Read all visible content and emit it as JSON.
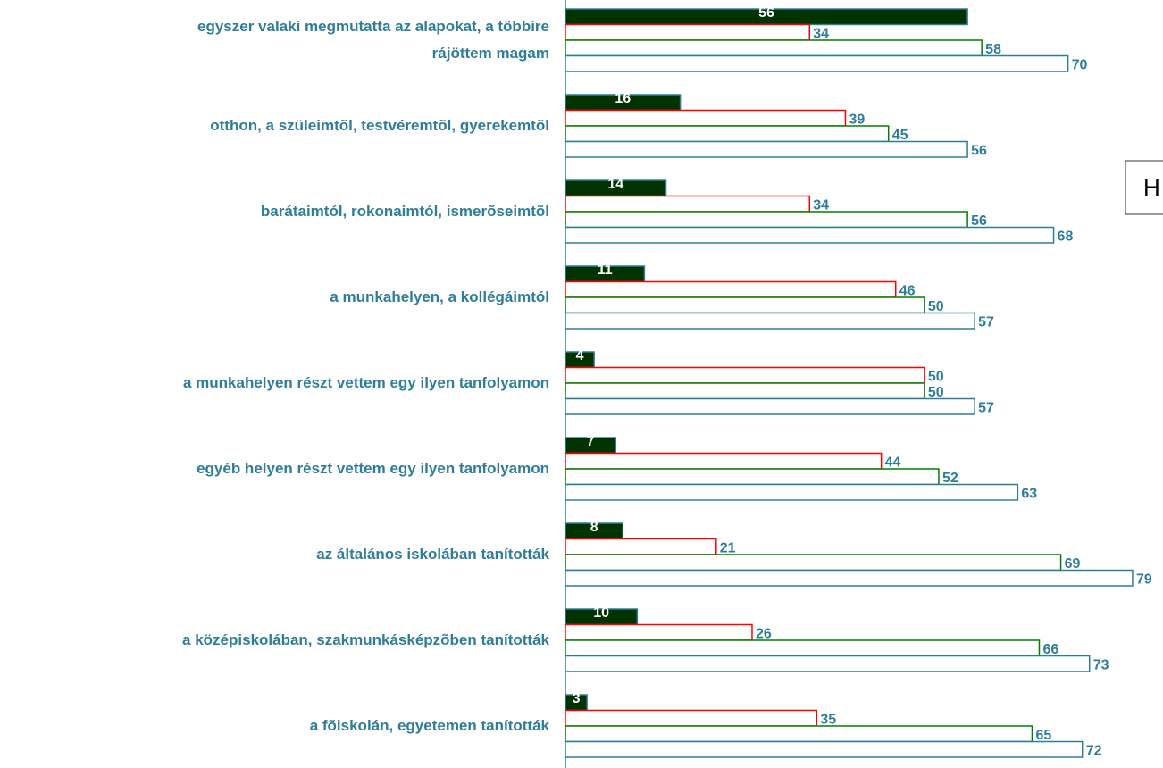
{
  "chart_data": {
    "type": "bar",
    "orientation": "horizontal",
    "categories": [
      "egyszer valaki megmutatta az alapokat, a többire\nrájöttem magam",
      "otthon, a szüleimtõl, testvéremtõl, gyerekemtõl",
      "barátaimtól, rokonaimtól, ismerõseimtõl",
      "a munkahelyen, a kollégáimtól",
      "a munkahelyen részt vettem egy ilyen tanfolyamon",
      "egyéb helyen részt vettem egy ilyen tanfolyamon",
      "az általános iskolában tanították",
      "a középiskolában, szakmunkásképzõben tanították",
      "a fõiskolán, egyetemen tanították"
    ],
    "series": [
      {
        "color": "#003300",
        "values": [
          56,
          16,
          14,
          11,
          4,
          7,
          8,
          10,
          3
        ]
      },
      {
        "color": "#ff0000",
        "values": [
          34,
          39,
          34,
          46,
          50,
          44,
          21,
          26,
          35
        ]
      },
      {
        "color": "#008000",
        "values": [
          58,
          45,
          56,
          50,
          50,
          52,
          69,
          66,
          65
        ]
      },
      {
        "color": "#2e7d9b",
        "values": [
          70,
          56,
          68,
          57,
          57,
          63,
          79,
          73,
          72
        ]
      }
    ],
    "xlim": [
      0,
      80
    ],
    "legend_fragment": "H"
  }
}
